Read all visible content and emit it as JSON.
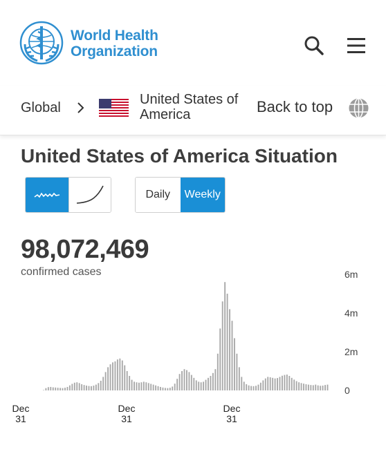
{
  "header": {
    "brand_line1": "World Health",
    "brand_line2": "Organization",
    "brand_color": "#2f8fd0",
    "search_icon": "search-icon",
    "menu_icon": "hamburger-menu-icon"
  },
  "breadcrumb": {
    "global_label": "Global",
    "country_label": "United States of America",
    "back_to_top_label": "Back to top"
  },
  "page": {
    "title": "United States of America Situation"
  },
  "toggles": {
    "chart_type": {
      "options": [
        "weekly-wave-icon",
        "cumulative-curve-icon"
      ],
      "selected": "weekly-wave-icon"
    },
    "period": {
      "daily_label": "Daily",
      "weekly_label": "Weekly",
      "selected": "Weekly"
    },
    "active_color": "#1a8fd6"
  },
  "summary": {
    "total": "98,072,469",
    "caption": "confirmed cases"
  },
  "chart_data": {
    "type": "bar",
    "y_ticks": [
      "6m",
      "4m",
      "2m",
      "0"
    ],
    "ylim": [
      0,
      6000000
    ],
    "x_tick_labels": [
      {
        "month": "Dec",
        "day": "31"
      },
      {
        "month": "Dec",
        "day": "31"
      },
      {
        "month": "Dec",
        "day": "31"
      }
    ],
    "bar_color": "#a9a9a9",
    "values": [
      20000,
      120000,
      170000,
      180000,
      160000,
      150000,
      140000,
      130000,
      120000,
      140000,
      180000,
      260000,
      340000,
      400000,
      420000,
      380000,
      320000,
      280000,
      250000,
      230000,
      220000,
      250000,
      300000,
      380000,
      500000,
      700000,
      950000,
      1200000,
      1350000,
      1450000,
      1500000,
      1600000,
      1650000,
      1550000,
      1300000,
      1000000,
      750000,
      550000,
      450000,
      420000,
      400000,
      420000,
      450000,
      420000,
      380000,
      340000,
      300000,
      260000,
      220000,
      180000,
      150000,
      130000,
      120000,
      140000,
      200000,
      350000,
      600000,
      850000,
      1000000,
      1100000,
      1050000,
      950000,
      800000,
      650000,
      520000,
      450000,
      420000,
      450000,
      550000,
      650000,
      750000,
      900000,
      1100000,
      1900000,
      3200000,
      4600000,
      5600000,
      5000000,
      4200000,
      3600000,
      2700000,
      1900000,
      1200000,
      700000,
      450000,
      320000,
      260000,
      230000,
      220000,
      240000,
      300000,
      400000,
      520000,
      620000,
      700000,
      680000,
      650000,
      620000,
      640000,
      700000,
      760000,
      800000,
      820000,
      750000,
      650000,
      560000,
      480000,
      420000,
      380000,
      350000,
      320000,
      300000,
      280000,
      270000,
      300000,
      260000,
      240000,
      250000,
      280000,
      300000
    ]
  }
}
